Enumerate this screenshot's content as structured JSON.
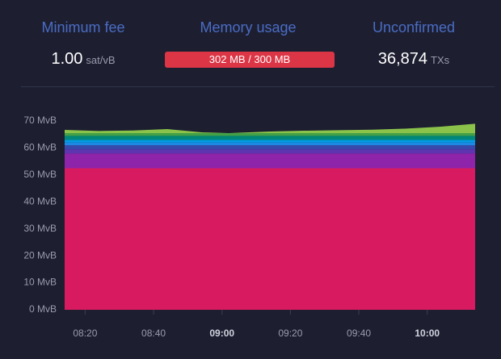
{
  "header": {
    "min_fee": {
      "title": "Minimum fee",
      "value": "1.00",
      "unit": "sat/vB"
    },
    "memory": {
      "title": "Memory usage",
      "value": "302 MB / 300 MB"
    },
    "unconfirmed": {
      "title": "Unconfirmed",
      "value": "36,874",
      "unit": "TXs"
    }
  },
  "chart_data": {
    "type": "stacked_area",
    "x": [
      "08:14",
      "08:24",
      "08:34",
      "08:44",
      "08:54",
      "09:02",
      "09:14",
      "09:24",
      "09:34",
      "09:44",
      "09:54",
      "10:04",
      "10:14"
    ],
    "xlim": [
      "08:14",
      "10:14"
    ],
    "xticks": [
      "08:20",
      "08:40",
      "09:00",
      "09:20",
      "09:40",
      "10:00"
    ],
    "xticks_bold": [
      false,
      false,
      true,
      false,
      false,
      true
    ],
    "ylim": [
      0,
      70
    ],
    "yticks": [
      {
        "value": 0,
        "label": "0 MvB"
      },
      {
        "value": 10,
        "label": "10 MvB"
      },
      {
        "value": 20,
        "label": "20 MvB"
      },
      {
        "value": 30,
        "label": "30 MvB"
      },
      {
        "value": 40,
        "label": "40 MvB"
      },
      {
        "value": 50,
        "label": "50 MvB"
      },
      {
        "value": 60,
        "label": "60 MvB"
      },
      {
        "value": 70,
        "label": "70 MvB"
      }
    ],
    "series": [
      {
        "color": "#d81b60",
        "values": [
          52.5,
          52.5,
          52.5,
          52.5,
          52.5,
          52.5,
          52.5,
          52.5,
          52.5,
          52.5,
          52.5,
          52.5,
          52.5
        ]
      },
      {
        "color": "#8e24aa",
        "values": [
          5.5,
          5.5,
          5.5,
          5.5,
          5.5,
          5.5,
          5.5,
          5.5,
          5.5,
          5.5,
          5.5,
          5.5,
          5.5
        ]
      },
      {
        "color": "#5e35b1",
        "values": [
          1.5,
          1.5,
          1.5,
          1.5,
          1.5,
          1.5,
          1.5,
          1.5,
          1.5,
          1.5,
          1.5,
          1.5,
          1.5
        ]
      },
      {
        "color": "#3949ab",
        "values": [
          1.5,
          1.5,
          1.5,
          1.5,
          1.5,
          1.5,
          1.5,
          1.5,
          1.5,
          1.5,
          1.5,
          1.5,
          1.5
        ]
      },
      {
        "color": "#1e88e5",
        "values": [
          1,
          1,
          1,
          1,
          1,
          1,
          1,
          1,
          1,
          1,
          1,
          1,
          1
        ]
      },
      {
        "color": "#039be5",
        "values": [
          1,
          1,
          1,
          1,
          1,
          1,
          1,
          1,
          1,
          1,
          1,
          1,
          1
        ]
      },
      {
        "color": "#00897b",
        "values": [
          1.5,
          1.5,
          1.5,
          1.5,
          1.5,
          1.5,
          1.5,
          1.5,
          1.5,
          1.5,
          1.5,
          1.5,
          1.5
        ]
      },
      {
        "color": "#43a047",
        "values": [
          1,
          1,
          1,
          1,
          1,
          1,
          1,
          1,
          1,
          1,
          1,
          1,
          1
        ]
      },
      {
        "color": "#8bc34a",
        "values": [
          1.2,
          0.8,
          1.0,
          1.5,
          0.3,
          0,
          0.6,
          0.9,
          1.1,
          1.3,
          1.7,
          2.4,
          3.5
        ]
      }
    ]
  }
}
